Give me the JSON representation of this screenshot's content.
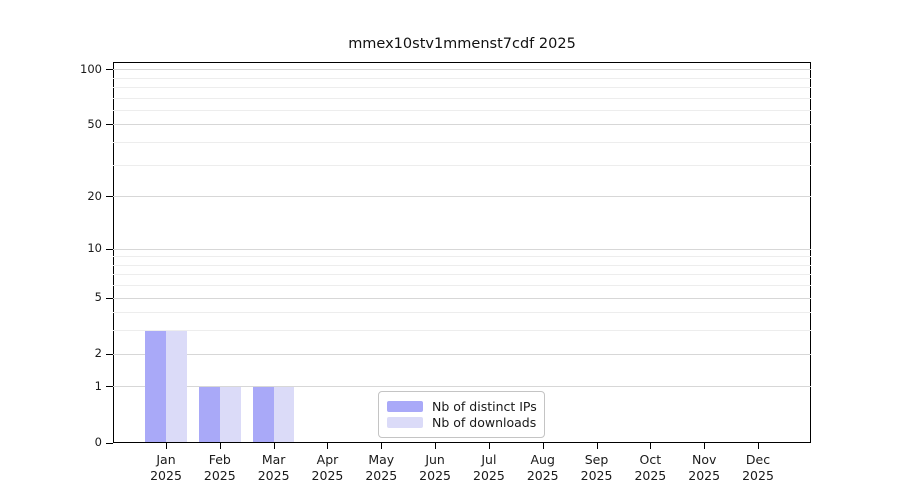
{
  "chart_data": {
    "type": "bar",
    "title": "mmex10stv1mmenst7cdf 2025",
    "categories": [
      "Jan 2025",
      "Feb 2025",
      "Mar 2025",
      "Apr 2025",
      "May 2025",
      "Jun 2025",
      "Jul 2025",
      "Aug 2025",
      "Sep 2025",
      "Oct 2025",
      "Nov 2025",
      "Dec 2025"
    ],
    "series": [
      {
        "name": "Nb of distinct IPs",
        "color": "#a9a9f8",
        "values": [
          3,
          1,
          1,
          0,
          0,
          0,
          0,
          0,
          0,
          0,
          0,
          0
        ]
      },
      {
        "name": "Nb of downloads",
        "color": "#dbdbf8",
        "values": [
          3,
          1,
          1,
          0,
          0,
          0,
          0,
          0,
          0,
          0,
          0,
          0
        ]
      }
    ],
    "y_axis": {
      "scale": "log1p",
      "major_ticks": [
        0,
        1,
        2,
        5,
        10,
        20,
        50,
        100
      ],
      "minor_ticks": [
        3,
        4,
        6,
        7,
        8,
        9,
        30,
        40,
        60,
        70,
        80,
        90
      ],
      "max": 110
    },
    "x_axis": {
      "year": "2025"
    },
    "legend": {
      "position": "lower center",
      "entries": [
        "Nb of distinct IPs",
        "Nb of downloads"
      ]
    },
    "grid": {
      "major_color": "#d7d7d7",
      "minor_color": "#ededed"
    }
  }
}
